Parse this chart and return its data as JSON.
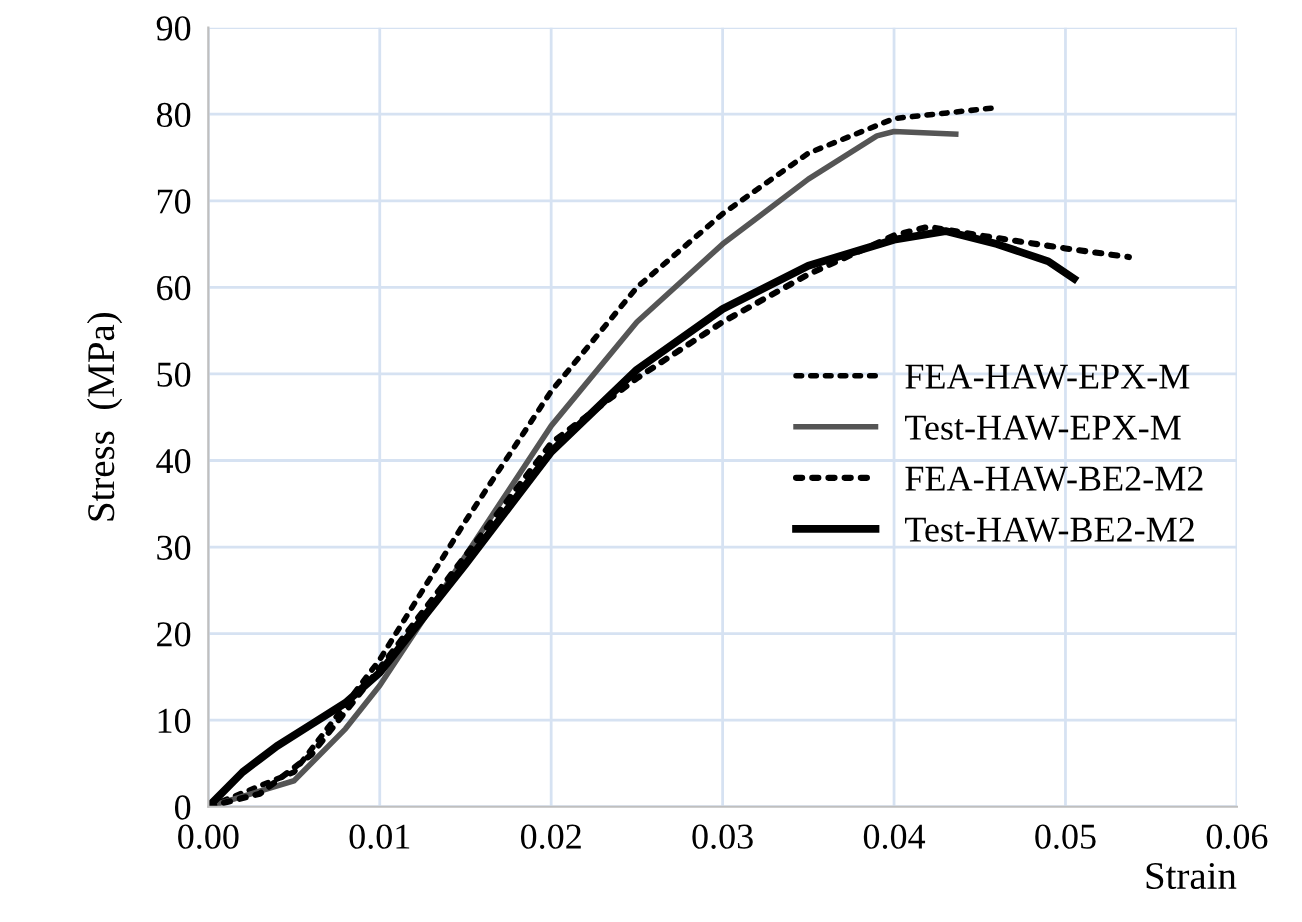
{
  "chart_data": {
    "type": "line",
    "xlabel": "Strain",
    "ylabel": "Stress  (MPa)",
    "xlim": [
      0,
      0.06
    ],
    "ylim": [
      0,
      90
    ],
    "xticks": [
      {
        "value": 0,
        "label": "0.00"
      },
      {
        "value": 0.01,
        "label": "0.01"
      },
      {
        "value": 0.02,
        "label": "0.02"
      },
      {
        "value": 0.03,
        "label": "0.03"
      },
      {
        "value": 0.04,
        "label": "0.04"
      },
      {
        "value": 0.05,
        "label": "0.05"
      },
      {
        "value": 0.06,
        "label": "0.06"
      }
    ],
    "yticks": [
      0,
      10,
      20,
      30,
      40,
      50,
      60,
      70,
      80,
      90
    ],
    "grid": true,
    "legend": "right",
    "series": [
      {
        "name": "FEA-HAW-EPX-M",
        "color": "#000000",
        "line_style": "dotted",
        "x": [
          0,
          0.005,
          0.01,
          0.015,
          0.02,
          0.025,
          0.03,
          0.035,
          0.04,
          0.0457
        ],
        "values": [
          0,
          4,
          17,
          33,
          48,
          60,
          68.5,
          75.5,
          79.5,
          80.7
        ]
      },
      {
        "name": "Test-HAW-EPX-M",
        "color": "#555555",
        "line_style": "solid",
        "x": [
          0,
          0.005,
          0.008,
          0.01,
          0.015,
          0.02,
          0.025,
          0.03,
          0.035,
          0.039,
          0.04,
          0.0436
        ],
        "values": [
          0,
          3,
          9,
          14,
          29,
          44,
          56,
          65,
          72.5,
          77.5,
          78,
          77.7
        ]
      },
      {
        "name": "FEA-HAW-BE2-M2",
        "color": "#000000",
        "line_style": "dotted",
        "x": [
          0,
          0.003,
          0.006,
          0.008,
          0.01,
          0.015,
          0.02,
          0.025,
          0.03,
          0.035,
          0.04,
          0.042,
          0.045,
          0.05,
          0.0537
        ],
        "values": [
          0,
          1.5,
          6,
          11,
          16,
          29,
          42,
          49.5,
          56,
          61.5,
          66,
          67,
          66,
          64.5,
          63.5
        ]
      },
      {
        "name": "Test-HAW-BE2-M2",
        "color": "#000000",
        "line_style": "solid",
        "x": [
          0,
          0.002,
          0.004,
          0.006,
          0.008,
          0.01,
          0.015,
          0.02,
          0.025,
          0.03,
          0.035,
          0.04,
          0.043,
          0.046,
          0.049,
          0.0505
        ],
        "values": [
          0,
          4,
          7,
          9.5,
          12,
          15.5,
          28,
          41,
          50.5,
          57.5,
          62.5,
          65.5,
          66.5,
          65,
          63,
          61
        ]
      }
    ]
  }
}
